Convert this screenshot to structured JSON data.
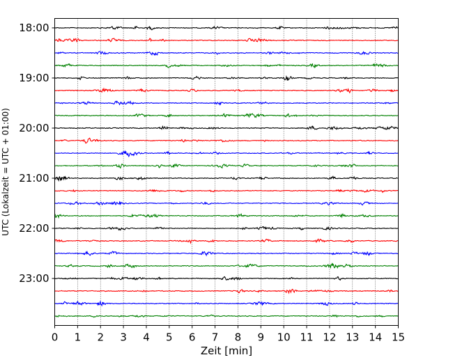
{
  "chart_data": {
    "type": "line",
    "title": "",
    "xlabel": "Zeit  [min]",
    "ylabel": "UTC (Lokalzeit = UTC + 01:00)",
    "xlim": [
      0,
      15
    ],
    "x_ticks": [
      "0",
      "1",
      "2",
      "3",
      "4",
      "5",
      "6",
      "7",
      "8",
      "9",
      "10",
      "11",
      "12",
      "13",
      "14",
      "15"
    ],
    "y_tick_labels": [
      "18:00",
      "19:00",
      "20:00",
      "21:00",
      "22:00",
      "23:00"
    ],
    "grid": "vertical dotted",
    "legend": "none",
    "trace_count": 24,
    "trace_interval_minutes": 15,
    "start_time": "18:00",
    "trace_colors": [
      "#000000",
      "#ff0000",
      "#0000ff",
      "#008000"
    ]
  }
}
